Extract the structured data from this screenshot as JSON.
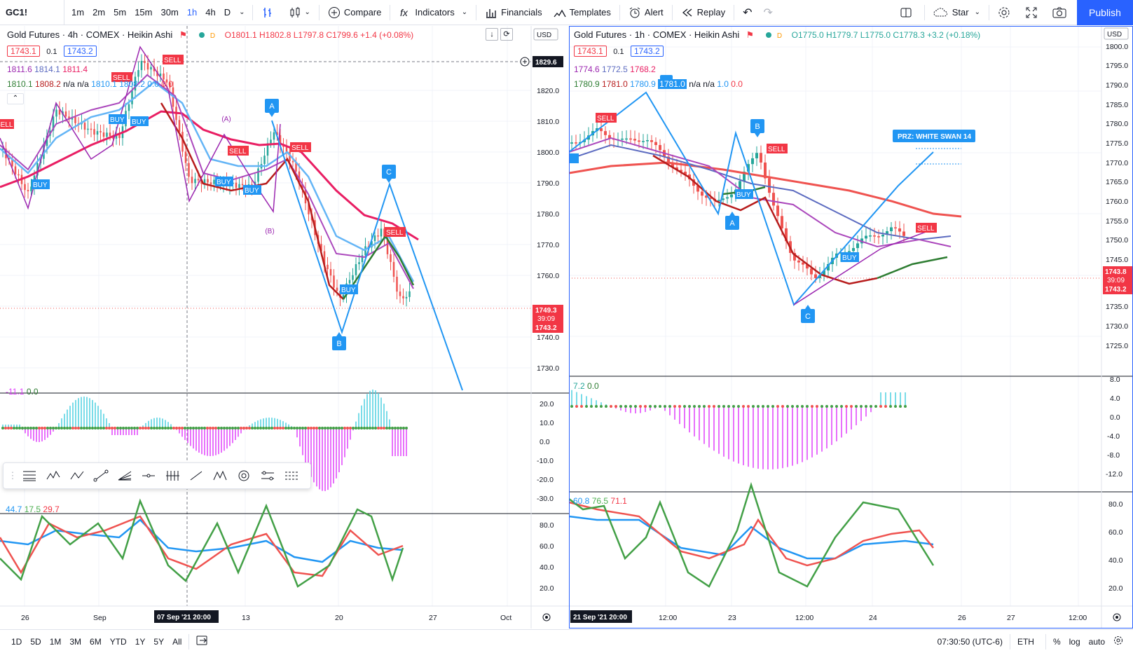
{
  "toolbar": {
    "symbol": "GC1!",
    "timeframes": [
      "1m",
      "2m",
      "5m",
      "15m",
      "30m",
      "1h",
      "4h",
      "D"
    ],
    "active_timeframe": "1h",
    "compare": "Compare",
    "indicators": "Indicators",
    "financials": "Financials",
    "templates": "Templates",
    "alert": "Alert",
    "replay": "Replay",
    "star": "Star",
    "publish": "Publish"
  },
  "left_chart": {
    "title": "Gold Futures · 4h · COMEX · Heikin Ashi",
    "ohlc": "O1801.1 H1802.8 L1797.8 C1799.6 +1.4 (+0.08%)",
    "bid": "1743.1",
    "spread": "0.1",
    "ask": "1743.2",
    "ind1": [
      "1811.6",
      "1814.1",
      "1811.4"
    ],
    "ind2": [
      "1810.1",
      "1808.2",
      "n/a",
      "n/a",
      "1810.1",
      "1808.2",
      "0.0",
      "0.0"
    ],
    "currency": "USD",
    "crosshair_price": "1829.6",
    "last_price_a": "1749.3",
    "last_price_time": "39:09",
    "last_price_b": "1743.2",
    "price_ticks": [
      "1820.0",
      "1810.0",
      "1800.0",
      "1790.0",
      "1780.0",
      "1770.0",
      "1760.0",
      "1750.0",
      "1740.0",
      "1730.0"
    ],
    "osc_values": [
      "-11.1",
      "0.0"
    ],
    "osc_ticks": [
      "20.0",
      "10.0",
      "0.0",
      "-10.0",
      "-20.0",
      "-30.0"
    ],
    "rsi_values": [
      "44.7",
      "17.5",
      "29.7"
    ],
    "rsi_ticks": [
      "80.0",
      "60.0",
      "40.0",
      "20.0"
    ],
    "time_ticks": [
      "26",
      "Sep",
      "13",
      "20",
      "27",
      "Oct"
    ],
    "crosshair_time": "07 Sep '21  20:00",
    "wave_labels": [
      "A",
      "B",
      "C",
      "(A)",
      "(B)"
    ],
    "signal_labels": [
      "SELL",
      "BUY"
    ]
  },
  "right_chart": {
    "title": "Gold Futures · 1h · COMEX · Heikin Ashi",
    "ohlc": "O1775.0 H1779.7 L1775.0 C1778.3 +3.2 (+0.18%)",
    "bid": "1743.1",
    "spread": "0.1",
    "ask": "1743.2",
    "ind1": [
      "1774.6",
      "1772.5",
      "1768.2"
    ],
    "ind2": [
      "1780.9",
      "1781.0",
      "1780.9",
      "1781.0",
      "n/a",
      "n/a",
      "1.0",
      "0.0"
    ],
    "currency": "USD",
    "last_price_a": "1743.8",
    "last_price_time": "39:09",
    "last_price_b": "1743.2",
    "price_ticks": [
      "1800.0",
      "1795.0",
      "1790.0",
      "1785.0",
      "1780.0",
      "1775.0",
      "1770.0",
      "1765.0",
      "1760.0",
      "1755.0",
      "1750.0",
      "1745.0",
      "1740.0",
      "1735.0",
      "1730.0",
      "1725.0"
    ],
    "osc_values": [
      "7.2",
      "0.0"
    ],
    "osc_ticks": [
      "8.0",
      "4.0",
      "0.0",
      "-4.0",
      "-8.0",
      "-12.0"
    ],
    "rsi_values": [
      "60.8",
      "76.5",
      "71.1"
    ],
    "rsi_ticks": [
      "80.0",
      "60.0",
      "40.0",
      "20.0"
    ],
    "time_ticks": [
      "12:00",
      "23",
      "12:00",
      "24",
      "26",
      "27",
      "12:00"
    ],
    "crosshair_time": "21 Sep '21  20:00",
    "przlabel": "PRZ: WHITE SWAN 14",
    "wave_labels": [
      "A",
      "B",
      "C"
    ]
  },
  "bottombar": {
    "ranges": [
      "1D",
      "5D",
      "1M",
      "3M",
      "6M",
      "YTD",
      "1Y",
      "5Y",
      "All"
    ],
    "clock": "07:30:50 (UTC-6)",
    "session": "ETH",
    "percent": "%",
    "log": "log",
    "auto": "auto"
  },
  "colors": {
    "accent": "#2962ff",
    "up": "#26a69a",
    "down": "#ef5350",
    "sell": "#f23645",
    "wave": "#2196f3",
    "ma_red": "#e91e63",
    "ma_purple": "#9c27b0"
  }
}
